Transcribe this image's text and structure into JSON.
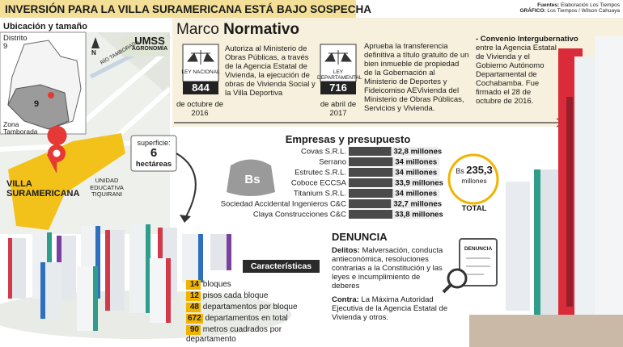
{
  "header": {
    "title": "INVERSIÓN PARA LA VILLA SURAMERICANA ESTÁ BAJO SOSPECHA",
    "sources_label": "Fuentes:",
    "sources": "Elaboración Los Tiempos",
    "graphic_label": "GRÁFICO:",
    "graphic": "Los Tiempos / Wilson Cahuaya"
  },
  "location": {
    "title": "Ubicación y tamaño",
    "district_label": "Distrito",
    "district": 9,
    "district_map": 9,
    "zone": "Zona Tamborada",
    "north": "N",
    "umss": "UMSS",
    "agronomia": "AGRONOMÍA",
    "river": "RÍO TAMBORADA",
    "villa": "VILLA SURAMERICANA",
    "school": "UNIDAD EDUCATIVA TIQUIRANI",
    "area_label": "superficie:",
    "area": 6,
    "area_unit": "hectáreas"
  },
  "marco": {
    "title_light": "Marco",
    "title_bold": "Normativo",
    "laws": [
      {
        "type": "LEY NACIONAL",
        "number": 844,
        "date": "de octubre de 2016",
        "text": "Autoriza al Ministerio de Obras Públicas, a través de la Agencia Estatal de Vivienda, la ejecución de obras de Vivienda Social y la Villa Deportiva"
      },
      {
        "type": "LEY DEPARTAMENTAL",
        "number": 716,
        "date": "de abril de 2017",
        "text": "Aprueba la transferencia definitiva a título gratuito de un bien inmueble de propiedad de la Gobernación al Ministerio de Deportes y Fideicomiso AEVivienda del Ministerio de Obras Públicas, Servicios y Vivienda."
      }
    ],
    "convenio": {
      "title": "- Convenio Intergubernativo",
      "text": "entre la Agencia Estatal de Vivienda y el Gobierno Autónomo Departamental de Cochabamba. Fue firmado el 28 de octubre de 2016."
    }
  },
  "chart_data": {
    "type": "bar",
    "orientation": "horizontal",
    "title": "Empresas y presupuesto",
    "categories": [
      "Covas S.R.L.",
      "Serrano",
      "Estrutec S.R.L.",
      "Coboce ECCSA",
      "Titanium S.R.L.",
      "Sociedad Accidental Ingenieros C&C",
      "Claya Construcciones C&C"
    ],
    "values": [
      32.8,
      34,
      34,
      33.9,
      34,
      32.7,
      33.8
    ],
    "value_labels": [
      "32,8 millones",
      "34 millones",
      "34 millones",
      "33,9 millones",
      "34 millones",
      "32,7 millones",
      "33,8 millones"
    ],
    "color": "#4a4a4a",
    "icon": "Bs"
  },
  "total": {
    "currency": "Bs",
    "value": "235,3",
    "unit": "millones",
    "label": "TOTAL"
  },
  "caracteristicas": {
    "title": "Características",
    "items": [
      {
        "value": 14,
        "label": "bloques"
      },
      {
        "value": 12,
        "label": "pisos cada bloque"
      },
      {
        "value": 48,
        "label": "departamentos por bloque"
      },
      {
        "value": 672,
        "label": "departamentos en total"
      },
      {
        "value": 90,
        "label": "metros cuadrados por departamento"
      }
    ]
  },
  "denuncia": {
    "title": "DENUNCIA",
    "icon": "DENUNCIA",
    "delitos_label": "Delitos:",
    "delitos": "Malversación, conducta antieconómica, resoluciones contrarias a la Constitución y las leyes e incumplimiento de deberes",
    "contra_label": "Contra:",
    "contra": "La Máxima Autoridad Ejecutiva de la Agencia Estatal de Vivienda y otros."
  }
}
